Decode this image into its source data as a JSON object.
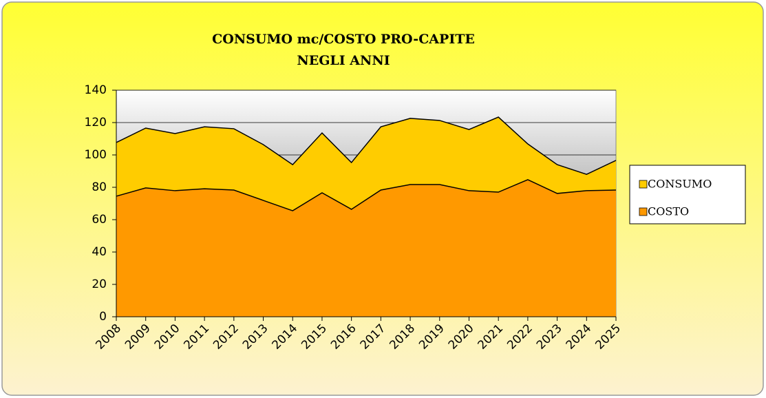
{
  "chart_data": {
    "type": "area",
    "title": [
      "CONSUMO mc/COSTO PRO-CAPITE",
      "NEGLI ANNI"
    ],
    "categories": [
      "2008",
      "2009",
      "2010",
      "2011",
      "2012",
      "2013",
      "2014",
      "2015",
      "2016",
      "2017",
      "2018",
      "2019",
      "2020",
      "2021",
      "2022",
      "2023",
      "2024",
      "2025"
    ],
    "series": [
      {
        "name": "CONSUMO",
        "color": "#ffcc00",
        "values": [
          107.7,
          116.6,
          113.2,
          117.4,
          116.2,
          106.4,
          94,
          113.6,
          95.3,
          117.4,
          122.6,
          121.3,
          115.7,
          123.4,
          106.8,
          94,
          88,
          96.6
        ]
      },
      {
        "name": "COSTO",
        "color": "#ff9900",
        "values": [
          74.5,
          79.6,
          77.9,
          79.1,
          78.3,
          71.9,
          65.5,
          76.6,
          66.4,
          78.3,
          81.7,
          81.7,
          77.9,
          77,
          84.7,
          76.2,
          77.9,
          78.3
        ]
      }
    ],
    "ylim": [
      0,
      140
    ],
    "yticks": [
      0,
      20,
      40,
      60,
      80,
      100,
      120,
      140
    ],
    "grid": true,
    "legend": "right"
  }
}
